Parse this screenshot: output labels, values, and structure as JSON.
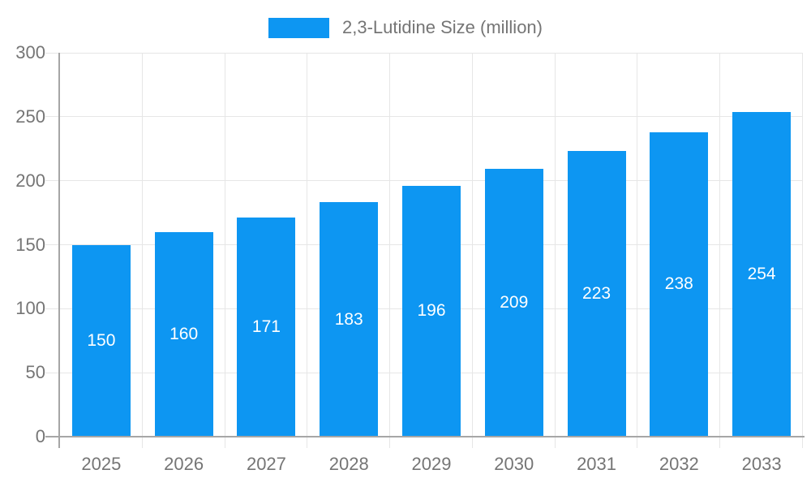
{
  "chart_data": {
    "type": "bar",
    "title": "",
    "legend": "2,3-Lutidine Size (million)",
    "legend_position": "top-center",
    "categories": [
      "2025",
      "2026",
      "2027",
      "2028",
      "2029",
      "2030",
      "2031",
      "2032",
      "2033"
    ],
    "values": [
      150,
      160,
      171,
      183,
      196,
      209,
      223,
      238,
      254
    ],
    "value_labels_position": "inside-center",
    "xlabel": "",
    "ylabel": "",
    "ylim": [
      0,
      300
    ],
    "yticks": [
      0,
      50,
      100,
      150,
      200,
      250,
      300
    ],
    "grid": true,
    "colors": {
      "bar": "#0d96f2",
      "value_label": "#ffffff",
      "axis_text": "#757575",
      "grid_line": "#e6e6e6",
      "axis_line": "#a6a6a6",
      "background": "#ffffff"
    }
  }
}
